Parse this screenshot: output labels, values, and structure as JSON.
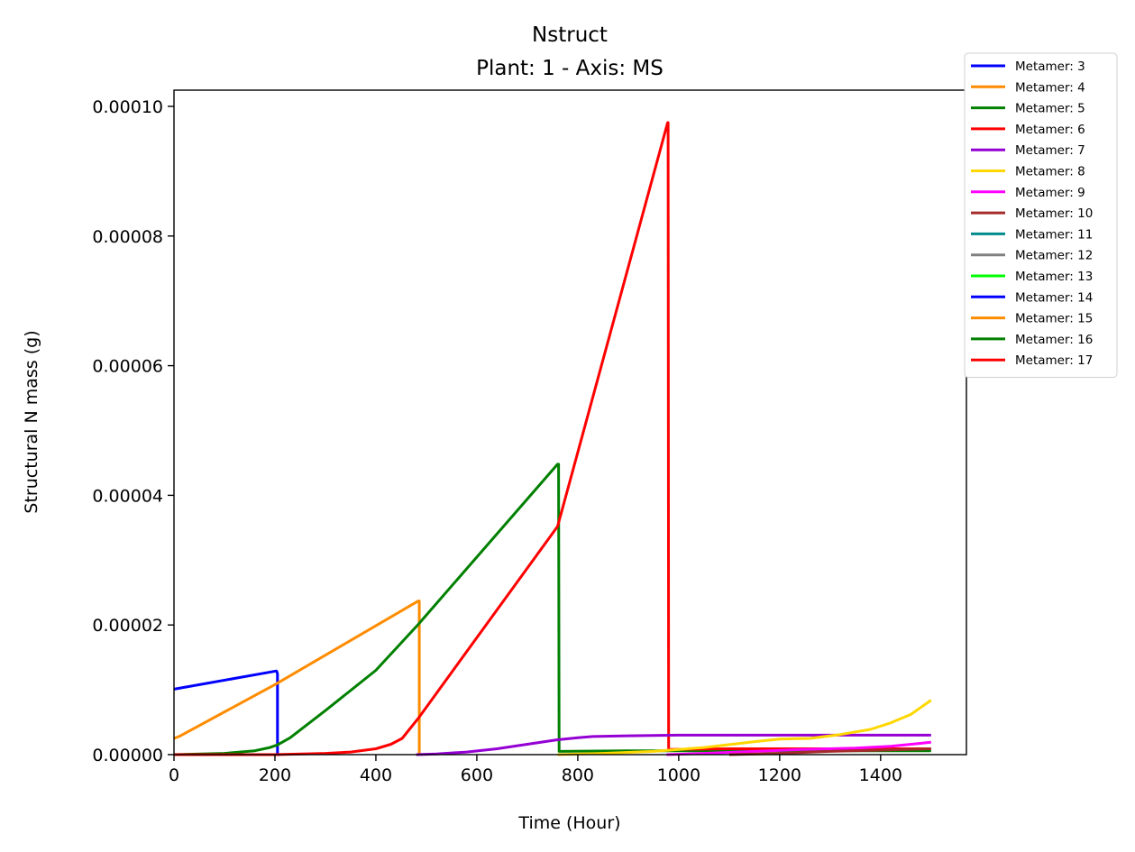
{
  "chart_data": {
    "type": "line",
    "title": "Nstruct",
    "subtitle": "Plant: 1 - Axis: MS",
    "xlabel": "Time (Hour)",
    "ylabel": "Structural N mass (g)",
    "xlim": [
      0,
      1570
    ],
    "ylim": [
      0,
      0.0001025
    ],
    "xticks": [
      0,
      200,
      400,
      600,
      800,
      1000,
      1200,
      1400
    ],
    "xtick_labels": [
      "0",
      "200",
      "400",
      "600",
      "800",
      "1000",
      "1200",
      "1400"
    ],
    "yticks": [
      0,
      2e-05,
      4e-05,
      6e-05,
      8e-05,
      0.0001
    ],
    "ytick_labels": [
      "0.00000",
      "0.00002",
      "0.00004",
      "0.00006",
      "0.00008",
      "0.00010"
    ],
    "grid": false,
    "legend_position": "outside-top-right",
    "series": [
      {
        "name": "Metamer: 3",
        "color": "#0000ff",
        "points": [
          [
            0,
            1.01e-05
          ],
          [
            203,
            1.29e-05
          ],
          [
            205,
            1.25e-05
          ],
          [
            205,
            0
          ],
          [
            210,
            0
          ]
        ]
      },
      {
        "name": "Metamer: 4",
        "color": "#ff8c00",
        "points": [
          [
            0,
            2.5e-06
          ],
          [
            10,
            2.8e-06
          ],
          [
            200,
            1.08e-05
          ],
          [
            484,
            2.37e-05
          ],
          [
            486,
            2.37e-05
          ],
          [
            486,
            0
          ]
        ]
      },
      {
        "name": "Metamer: 5",
        "color": "#008000",
        "points": [
          [
            0,
            0
          ],
          [
            100,
            2e-07
          ],
          [
            160,
            6e-07
          ],
          [
            190,
            1.1e-06
          ],
          [
            205,
            1.5e-06
          ],
          [
            230,
            2.6e-06
          ],
          [
            300,
            6.8e-06
          ],
          [
            400,
            1.3e-05
          ],
          [
            484,
            2.01e-05
          ],
          [
            760,
            4.48e-05
          ],
          [
            762,
            4.48e-05
          ],
          [
            763,
            5e-07
          ],
          [
            900,
            6e-07
          ],
          [
            1000,
            6e-07
          ],
          [
            1500,
            6e-07
          ]
        ]
      },
      {
        "name": "Metamer: 6",
        "color": "#ff0000",
        "points": [
          [
            0,
            0
          ],
          [
            200,
            0
          ],
          [
            300,
            2e-07
          ],
          [
            350,
            4e-07
          ],
          [
            400,
            9e-07
          ],
          [
            430,
            1.6e-06
          ],
          [
            452,
            2.5e-06
          ],
          [
            484,
            5.6e-06
          ],
          [
            760,
            3.52e-05
          ],
          [
            978,
            9.75e-05
          ],
          [
            979,
            9.75e-05
          ],
          [
            980,
            8e-07
          ],
          [
            1100,
            9e-07
          ],
          [
            1500,
            9e-07
          ]
        ]
      },
      {
        "name": "Metamer: 7",
        "color": "#9400d3",
        "points": [
          [
            480,
            0
          ],
          [
            520,
            1e-07
          ],
          [
            580,
            4e-07
          ],
          [
            640,
            9e-07
          ],
          [
            700,
            1.6e-06
          ],
          [
            760,
            2.3e-06
          ],
          [
            800,
            2.6e-06
          ],
          [
            830,
            2.8e-06
          ],
          [
            900,
            2.9e-06
          ],
          [
            1000,
            3e-06
          ],
          [
            1200,
            3e-06
          ],
          [
            1500,
            3e-06
          ]
        ]
      },
      {
        "name": "Metamer: 8",
        "color": "#ffd700",
        "points": [
          [
            760,
            0
          ],
          [
            850,
            2e-07
          ],
          [
            950,
            5e-07
          ],
          [
            1050,
            1.1e-06
          ],
          [
            1150,
            2e-06
          ],
          [
            1200,
            2.4e-06
          ],
          [
            1260,
            2.5e-06
          ],
          [
            1320,
            3.1e-06
          ],
          [
            1380,
            3.9e-06
          ],
          [
            1420,
            4.9e-06
          ],
          [
            1460,
            6.2e-06
          ],
          [
            1500,
            8.4e-06
          ]
        ]
      },
      {
        "name": "Metamer: 9",
        "color": "#ff00ff",
        "points": [
          [
            976,
            0
          ],
          [
            1050,
            2e-07
          ],
          [
            1150,
            5e-07
          ],
          [
            1250,
            8e-07
          ],
          [
            1350,
            1e-06
          ],
          [
            1420,
            1.3e-06
          ],
          [
            1500,
            1.9e-06
          ]
        ]
      },
      {
        "name": "Metamer: 10",
        "color": "#a52a2a",
        "points": [
          [
            1100,
            0
          ],
          [
            1200,
            2e-07
          ],
          [
            1300,
            5e-07
          ],
          [
            1400,
            7e-07
          ],
          [
            1500,
            9e-07
          ]
        ]
      },
      {
        "name": "Metamer: 11",
        "color": "#008b8b",
        "points": []
      },
      {
        "name": "Metamer: 12",
        "color": "#808080",
        "points": []
      },
      {
        "name": "Metamer: 13",
        "color": "#00ff00",
        "points": []
      },
      {
        "name": "Metamer: 14",
        "color": "#0000ff",
        "points": []
      },
      {
        "name": "Metamer: 15",
        "color": "#ff8c00",
        "points": []
      },
      {
        "name": "Metamer: 16",
        "color": "#008000",
        "points": []
      },
      {
        "name": "Metamer: 17",
        "color": "#ff0000",
        "points": []
      }
    ]
  }
}
